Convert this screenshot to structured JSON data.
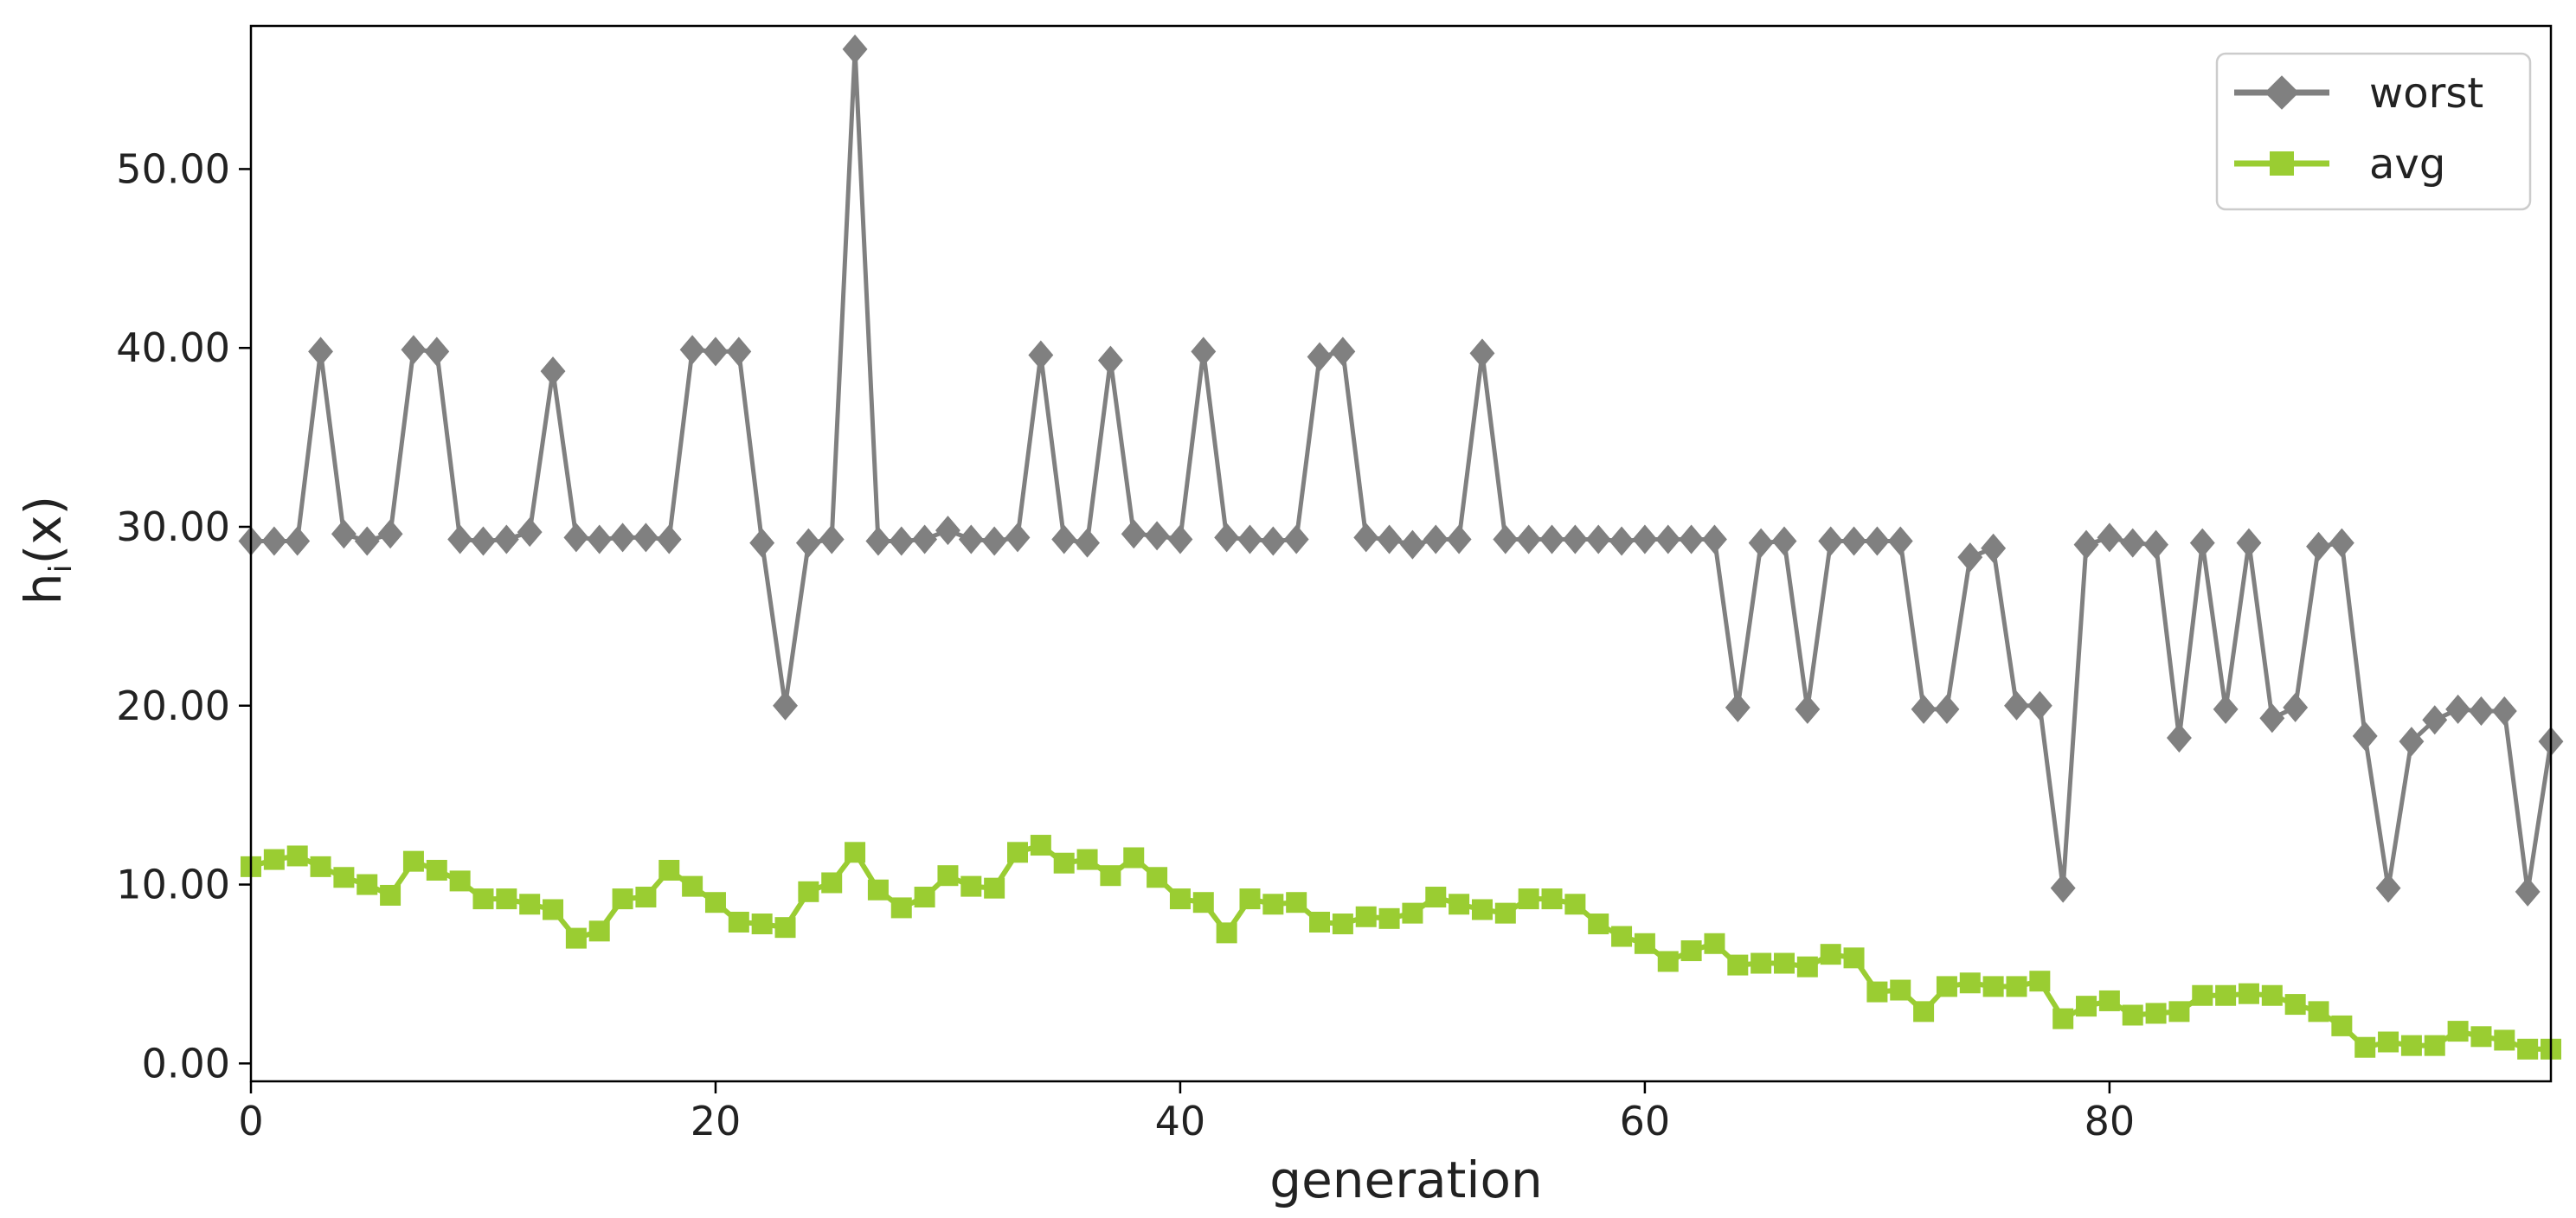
{
  "chart_data": {
    "type": "line",
    "title": "",
    "xlabel": "generation",
    "ylabel": "h",
    "ylabel_subscript": "i",
    "ylabel_suffix": "(x)",
    "xlim": [
      0,
      99
    ],
    "ylim": [
      -1,
      58
    ],
    "xticks": [
      0,
      20,
      40,
      60,
      80
    ],
    "yticks": [
      0,
      10,
      20,
      30,
      40,
      50
    ],
    "ytick_labels": [
      "0.00",
      "10.00",
      "20.00",
      "30.00",
      "40.00",
      "50.00"
    ],
    "legend_position": "top-right",
    "grid": false,
    "series": [
      {
        "name": "worst",
        "color": "#808080",
        "marker": "diamond",
        "values": [
          29.2,
          29.2,
          29.2,
          39.8,
          29.6,
          29.2,
          29.6,
          39.9,
          39.8,
          29.3,
          29.2,
          29.3,
          29.7,
          38.7,
          29.4,
          29.3,
          29.4,
          29.4,
          29.3,
          39.9,
          39.8,
          39.8,
          29.1,
          20.0,
          29.1,
          29.3,
          56.7,
          29.2,
          29.2,
          29.3,
          29.8,
          29.3,
          29.2,
          29.4,
          39.6,
          29.3,
          29.1,
          39.3,
          29.6,
          29.5,
          29.3,
          39.8,
          29.4,
          29.3,
          29.2,
          29.3,
          39.5,
          39.8,
          29.4,
          29.3,
          29.0,
          29.3,
          29.3,
          39.7,
          29.3,
          29.3,
          29.3,
          29.3,
          29.3,
          29.2,
          29.3,
          29.3,
          29.3,
          29.3,
          19.9,
          29.1,
          29.2,
          19.8,
          29.2,
          29.2,
          29.2,
          29.2,
          19.8,
          19.8,
          28.3,
          28.8,
          20.0,
          20.0,
          9.8,
          29.0,
          29.4,
          29.1,
          29.0,
          18.2,
          29.1,
          19.8,
          29.1,
          19.3,
          19.9,
          28.9,
          29.1,
          18.3,
          9.8,
          18.0,
          19.2,
          19.8,
          19.7,
          19.7,
          9.6,
          18.0
        ]
      },
      {
        "name": "avg",
        "color": "#9ACD32",
        "marker": "square",
        "values": [
          11.0,
          11.4,
          11.6,
          11.0,
          10.4,
          10.0,
          9.4,
          11.3,
          10.8,
          10.2,
          9.2,
          9.2,
          8.9,
          8.6,
          7.0,
          7.4,
          9.2,
          9.3,
          10.8,
          9.9,
          9.0,
          7.9,
          7.8,
          7.6,
          9.6,
          10.1,
          11.8,
          9.7,
          8.7,
          9.3,
          10.5,
          9.9,
          9.8,
          11.8,
          12.2,
          11.2,
          11.4,
          10.5,
          11.5,
          10.4,
          9.2,
          9.0,
          7.3,
          9.2,
          8.9,
          9.0,
          7.9,
          7.8,
          8.2,
          8.1,
          8.4,
          9.3,
          8.9,
          8.6,
          8.4,
          9.2,
          9.2,
          8.9,
          7.8,
          7.1,
          6.7,
          5.7,
          6.3,
          6.7,
          5.5,
          5.6,
          5.6,
          5.4,
          6.1,
          5.9,
          4.0,
          4.1,
          2.9,
          4.3,
          4.5,
          4.3,
          4.3,
          4.6,
          2.5,
          3.2,
          3.5,
          2.7,
          2.8,
          2.9,
          3.8,
          3.8,
          3.9,
          3.8,
          3.3,
          2.9,
          2.1,
          0.9,
          1.2,
          1.0,
          1.0,
          1.8,
          1.5,
          1.3,
          0.8,
          0.8
        ]
      }
    ]
  }
}
